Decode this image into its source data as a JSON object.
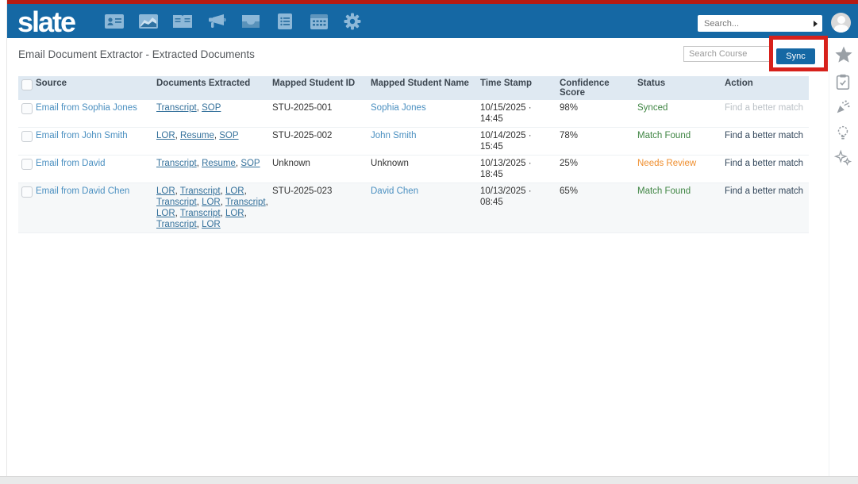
{
  "header": {
    "logo": "slate",
    "search_placeholder": "Search...",
    "nav_icons": [
      "id-card",
      "area-chart",
      "open-book",
      "megaphone",
      "inbox-tray",
      "document-list",
      "calendar-grid",
      "gear"
    ]
  },
  "page": {
    "title": "Email Document Extractor - Extracted Documents",
    "course_search_placeholder": "Search Course",
    "sync_label": "Sync"
  },
  "table": {
    "columns": [
      "Source",
      "Documents Extracted",
      "Mapped Student ID",
      "Mapped Student Name",
      "Time Stamp",
      "Confidence Score",
      "Status",
      "Action"
    ],
    "rows": [
      {
        "source": "Email from Sophia Jones",
        "documents": [
          "Transcript",
          "SOP"
        ],
        "student_id": "STU-2025-001",
        "student_name": "Sophia Jones",
        "student_name_is_link": true,
        "timestamp": "10/15/2025 · 14:45",
        "confidence": "98%",
        "status": "Synced",
        "status_type": "success",
        "action": "Find a better match",
        "action_enabled": false,
        "tinted": false
      },
      {
        "source": "Email from John Smith",
        "documents": [
          "LOR",
          "Resume",
          "SOP"
        ],
        "student_id": "STU-2025-002",
        "student_name": "John Smith",
        "student_name_is_link": true,
        "timestamp": "10/14/2025 · 15:45",
        "confidence": "78%",
        "status": "Match Found",
        "status_type": "success",
        "action": "Find a better match",
        "action_enabled": true,
        "tinted": false
      },
      {
        "source": "Email from David",
        "documents": [
          "Transcript",
          "Resume",
          "SOP"
        ],
        "student_id": "Unknown",
        "student_name": "Unknown",
        "student_name_is_link": false,
        "timestamp": "10/13/2025 · 18:45",
        "confidence": "25%",
        "status": "Needs Review",
        "status_type": "warning",
        "action": "Find a better match",
        "action_enabled": true,
        "tinted": false
      },
      {
        "source": "Email from David Chen",
        "documents": [
          "LOR",
          "Transcript",
          "LOR",
          "Transcript",
          "LOR",
          "Transcript",
          "LOR",
          "Transcript",
          "LOR",
          "Transcript",
          "LOR"
        ],
        "student_id": "STU-2025-023",
        "student_name": "David Chen",
        "student_name_is_link": true,
        "timestamp": "10/13/2025 · 08:45",
        "confidence": "65%",
        "status": "Match Found",
        "status_type": "success",
        "action": "Find a better match",
        "action_enabled": true,
        "tinted": true
      }
    ]
  },
  "right_rail_icons": [
    "star",
    "clipboard-check",
    "party-popper",
    "lightbulb",
    "sparkles"
  ],
  "colors": {
    "success": "#3f8543",
    "warning": "#ef8e2e",
    "accent": "#1568a4",
    "annotation_red": "#d7211b",
    "top_line_red": "#b61b12",
    "source_link": "#4a8fc0",
    "doc_link": "#35719b",
    "action_link": "#33475b",
    "action_disabled": "#bcc2c7",
    "table_header_bg": "#dfe9f2"
  }
}
